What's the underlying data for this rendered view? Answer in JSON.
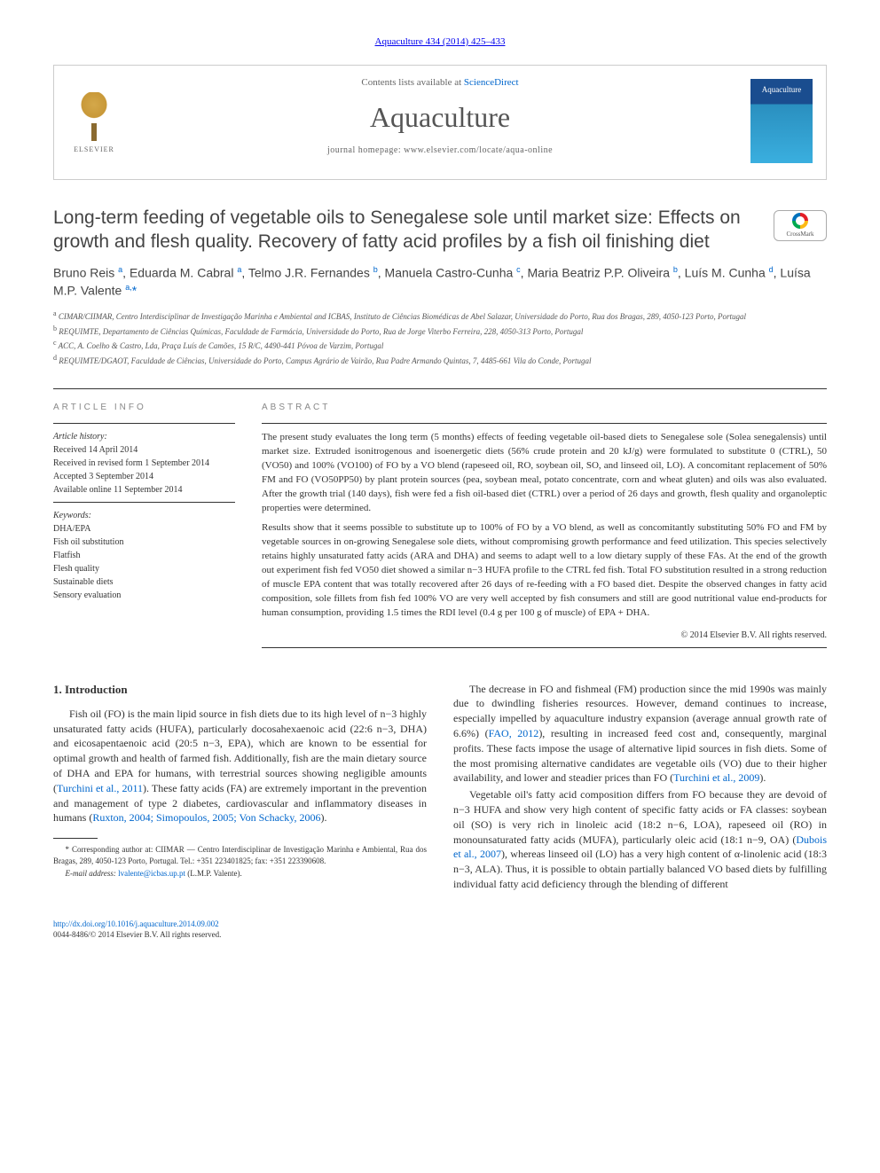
{
  "journal_ref": "Aquaculture 434 (2014) 425–433",
  "header": {
    "contents_prefix": "Contents lists available at ",
    "contents_link": "ScienceDirect",
    "journal_name": "Aquaculture",
    "homepage": "journal homepage: www.elsevier.com/locate/aqua-online",
    "publisher": "ELSEVIER",
    "cover_title": "Aquaculture"
  },
  "crossmark_label": "CrossMark",
  "title": "Long-term feeding of vegetable oils to Senegalese sole until market size: Effects on growth and flesh quality. Recovery of fatty acid profiles by a fish oil finishing diet",
  "authors_html": "Bruno Reis <sup>a</sup>, Eduarda M. Cabral <sup>a</sup>, Telmo J.R. Fernandes <sup>b</sup>, Manuela Castro-Cunha <sup>c</sup>, Maria Beatriz P.P. Oliveira <sup>b</sup>, Luís M. Cunha <sup>d</sup>, Luísa M.P. Valente <sup>a,</sup><span class='corr'>*</span>",
  "affiliations": [
    {
      "key": "a",
      "text": "CIMAR/CIIMAR, Centro Interdisciplinar de Investigação Marinha e Ambiental and ICBAS, Instituto de Ciências Biomédicas de Abel Salazar, Universidade do Porto, Rua dos Bragas, 289, 4050-123 Porto, Portugal"
    },
    {
      "key": "b",
      "text": "REQUIMTE, Departamento de Ciências Químicas, Faculdade de Farmácia, Universidade do Porto, Rua de Jorge Viterbo Ferreira, 228, 4050-313 Porto, Portugal"
    },
    {
      "key": "c",
      "text": "ACC, A. Coelho & Castro, Lda, Praça Luís de Camões, 15 R/C, 4490-441 Póvoa de Varzim, Portugal"
    },
    {
      "key": "d",
      "text": "REQUIMTE/DGAOT, Faculdade de Ciências, Universidade do Porto, Campus Agrário de Vairão, Rua Padre Armando Quintas, 7, 4485-661 Vila do Conde, Portugal"
    }
  ],
  "article_info": {
    "header": "ARTICLE INFO",
    "history_label": "Article history:",
    "history": [
      "Received 14 April 2014",
      "Received in revised form 1 September 2014",
      "Accepted 3 September 2014",
      "Available online 11 September 2014"
    ],
    "keywords_label": "Keywords:",
    "keywords": [
      "DHA/EPA",
      "Fish oil substitution",
      "Flatfish",
      "Flesh quality",
      "Sustainable diets",
      "Sensory evaluation"
    ]
  },
  "abstract": {
    "header": "ABSTRACT",
    "p1": "The present study evaluates the long term (5 months) effects of feeding vegetable oil-based diets to Senegalese sole (Solea senegalensis) until market size. Extruded isonitrogenous and isoenergetic diets (56% crude protein and 20 kJ/g) were formulated to substitute 0 (CTRL), 50 (VO50) and 100% (VO100) of FO by a VO blend (rapeseed oil, RO, soybean oil, SO, and linseed oil, LO). A concomitant replacement of 50% FM and FO (VO50PP50) by plant protein sources (pea, soybean meal, potato concentrate, corn and wheat gluten) and oils was also evaluated. After the growth trial (140 days), fish were fed a fish oil-based diet (CTRL) over a period of 26 days and growth, flesh quality and organoleptic properties were determined.",
    "p2": "Results show that it seems possible to substitute up to 100% of FO by a VO blend, as well as concomitantly substituting 50% FO and FM by vegetable sources in on-growing Senegalese sole diets, without compromising growth performance and feed utilization. This species selectively retains highly unsaturated fatty acids (ARA and DHA) and seems to adapt well to a low dietary supply of these FAs. At the end of the growth out experiment fish fed VO50 diet showed a similar n−3 HUFA profile to the CTRL fed fish. Total FO substitution resulted in a strong reduction of muscle EPA content that was totally recovered after 26 days of re-feeding with a FO based diet. Despite the observed changes in fatty acid composition, sole fillets from fish fed 100% VO are very well accepted by fish consumers and still are good nutritional value end-products for human consumption, providing 1.5 times the RDI level (0.4 g per 100 g of muscle) of EPA + DHA.",
    "copyright": "© 2014 Elsevier B.V. All rights reserved."
  },
  "intro": {
    "heading": "1. Introduction",
    "p1_pre": "Fish oil (FO) is the main lipid source in fish diets due to its high level of n−3 highly unsaturated fatty acids (HUFA), particularly docosahexaenoic acid (22:6 n−3, DHA) and eicosapentaenoic acid (20:5 n−3, EPA), which are known to be essential for optimal growth and health of farmed fish. Additionally, fish are the main dietary source of DHA and EPA for humans, with terrestrial sources showing negligible amounts (",
    "p1_link1": "Turchini et al., 2011",
    "p1_mid": "). These fatty acids (FA) are extremely important in the prevention and management of type 2 diabetes, cardiovascular and inflammatory diseases in humans (",
    "p1_link2": "Ruxton, 2004; Simopoulos, 2005; Von Schacky, 2006",
    "p1_post": ").",
    "p2_pre": "The decrease in FO and fishmeal (FM) production since the mid 1990s was mainly due to dwindling fisheries resources. However, demand continues to increase, especially impelled by aquaculture industry expansion (average annual growth rate of 6.6%) (",
    "p2_link1": "FAO, 2012",
    "p2_mid": "), resulting in increased feed cost and, consequently, marginal profits. These facts impose the usage of alternative lipid sources in fish diets. Some of the most promising alternative candidates are vegetable oils (VO) due to their higher availability, and lower and steadier prices than FO (",
    "p2_link2": "Turchini et al., 2009",
    "p2_post": ").",
    "p3_pre": "Vegetable oil's fatty acid composition differs from FO because they are devoid of n−3 HUFA and show very high content of specific fatty acids or FA classes: soybean oil (SO) is very rich in linoleic acid (18:2 n−6, LOA), rapeseed oil (RO) in monounsaturated fatty acids (MUFA), particularly oleic acid (18:1 n−9, OA) (",
    "p3_link1": "Dubois et al., 2007",
    "p3_post": "), whereas linseed oil (LO) has a very high content of α-linolenic acid (18:3 n−3, ALA). Thus, it is possible to obtain partially balanced VO based diets by fulfilling individual fatty acid deficiency through the blending of different"
  },
  "footnote": {
    "corr_text": "* Corresponding author at: CIIMAR — Centro Interdisciplinar de Investigação Marinha e Ambiental, Rua dos Bragas, 289, 4050-123 Porto, Portugal. Tel.: +351 223401825; fax: +351 223390608.",
    "email_label": "E-mail address:",
    "email": "lvalente@icbas.up.pt",
    "email_who": "(L.M.P. Valente)."
  },
  "footer": {
    "doi": "http://dx.doi.org/10.1016/j.aquaculture.2014.09.002",
    "issn_line": "0044-8486/© 2014 Elsevier B.V. All rights reserved."
  },
  "colors": {
    "link": "#0066cc",
    "text": "#333333",
    "muted": "#888888"
  }
}
